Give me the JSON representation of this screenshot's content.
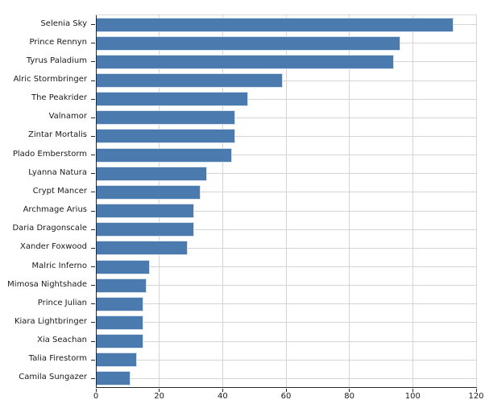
{
  "chart_data": {
    "type": "bar",
    "orientation": "horizontal",
    "title": "",
    "xlabel": "",
    "ylabel": "",
    "categories": [
      "Selenia Sky",
      "Prince Rennyn",
      "Tyrus Paladium",
      "Alric Stormbringer",
      "The Peakrider",
      "Valnamor",
      "Zintar Mortalis",
      "Plado Emberstorm",
      "Lyanna Natura",
      "Crypt Mancer",
      "Archmage Arius",
      "Daria Dragonscale",
      "Xander Foxwood",
      "Malric Inferno",
      "Mimosa Nightshade",
      "Prince Julian",
      "Kiara Lightbringer",
      "Xia Seachan",
      "Talia Firestorm",
      "Camila Sungazer"
    ],
    "values": [
      113,
      96,
      94,
      59,
      48,
      44,
      44,
      43,
      35,
      33,
      31,
      31,
      29,
      17,
      16,
      15,
      15,
      15,
      13,
      11
    ],
    "xlim": [
      0,
      120
    ],
    "xticks": [
      0,
      20,
      40,
      60,
      80,
      100,
      120
    ],
    "grid": true,
    "legend": false,
    "colors": {
      "bar_fill": "#4a7aae",
      "bar_edge": "#d8e2ee",
      "grid_line": "#d4d4d4",
      "spine": "#262626",
      "tick_label": "#1a1a1a",
      "background": "#ffffff"
    }
  }
}
